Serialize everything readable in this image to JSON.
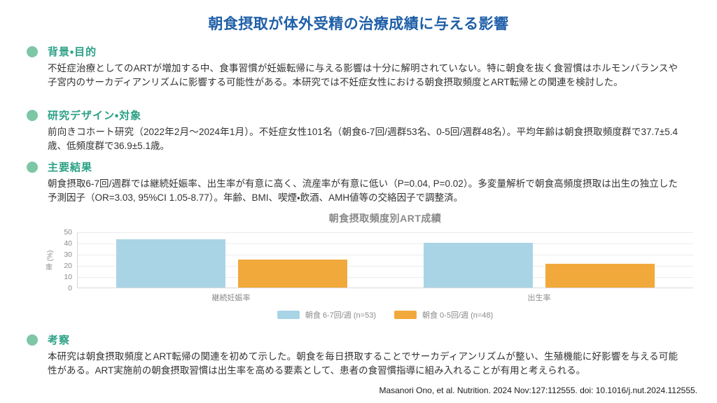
{
  "page": {
    "title": "朝食摂取が体外受精の治療成績に与える影響",
    "citation": "Masanori Ono, et al. Nutrition. 2024 Nov:127:112555. doi: 10.1016/j.nut.2024.112555."
  },
  "colors": {
    "title_accent": "#1f5fa8",
    "section_heading": "#2ba186",
    "bullet": "#7dc6a6",
    "body_text": "#333333",
    "chart_text": "#8a8a8a",
    "series_blue": "#a9d4e5",
    "series_orange": "#f2a93b"
  },
  "sections": [
    {
      "heading": "背景・目的",
      "body": "不妊症治療としてのARTが増加する中、食事習慣が妊娠転帰に与える影響は十分に解明されていない。特に朝食を抜く食習慣はホルモンバランスや子宮内のサーカディアンリズムに影響する可能性がある。本研究では不妊症女性における朝食摂取頻度とART転帰との関連を検討した。"
    },
    {
      "heading": "研究デザイン・対象",
      "body": "前向きコホート研究（2022年2月〜2024年1月）。不妊症女性101名（朝食6-7回/週群53名、0-5回/週群48名）。平均年齢は朝食摂取頻度群で37.7±5.4歳、低頻度群で36.9±5.1歳。"
    },
    {
      "heading": "主要結果",
      "body": "朝食摂取6-7回/週群では継続妊娠率、出生率が有意に高く、流産率が有意に低い（P=0.04, P=0.02）。多変量解析で朝食高頻度摂取は出生の独立した予測因子（OR=3.03, 95%CI 1.05-8.77）。年齢、BMI、喫煙・飲酒、AMH値等の交絡因子で調整済。"
    },
    {
      "heading": "考察",
      "body": "本研究は朝食摂取頻度とART転帰の関連を初めて示した。朝食を毎日摂取することでサーカディアンリズムが整い、生殖機能に好影響を与える可能性がある。ART実施前の朝食摂取習慣は出生率を高める要素として、患者の食習慣指導に組み入れることが有用と考えられる。"
    }
  ],
  "chart_data": {
    "type": "bar",
    "title": "朝食摂取頻度別ART成績",
    "categories": [
      "継続妊娠率",
      "出生率"
    ],
    "series": [
      {
        "name": "朝食 6-7回/週 (n=53)",
        "color": "#a9d4e5",
        "values": [
          43,
          40
        ]
      },
      {
        "name": "朝食 0-5回/週 (n=48)",
        "color": "#f2a93b",
        "values": [
          25,
          21
        ]
      }
    ],
    "xlabel": "",
    "ylabel": "率 (%)",
    "ylim": [
      0,
      50
    ],
    "yticks": [
      50,
      40,
      30,
      20,
      10,
      0
    ],
    "grid": true,
    "legend_position": "bottom"
  }
}
